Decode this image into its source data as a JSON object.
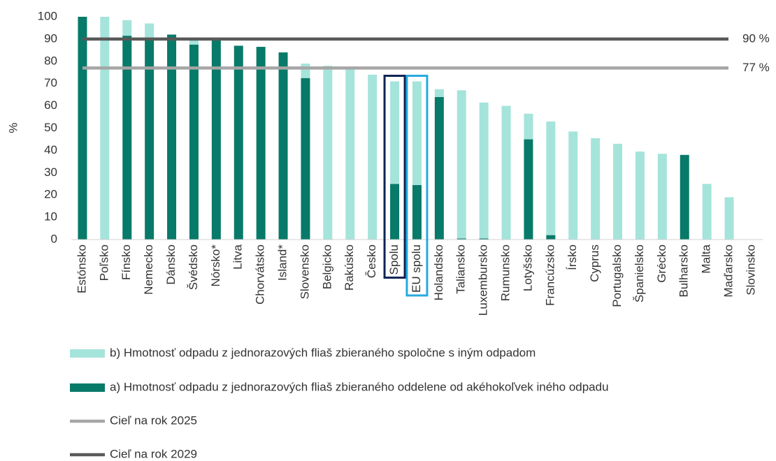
{
  "chart_data": {
    "type": "stacked_bar",
    "ylabel": "%",
    "categories": [
      "Estónsko",
      "Poľsko",
      "Fínsko",
      "Nemecko",
      "Dánsko",
      "Švédsko",
      "Nórsko*",
      "Litva",
      "Chorvátsko",
      "Island*",
      "Slovensko",
      "Belgicko",
      "Rakúsko",
      "Česko",
      "Spolu",
      "EU spolu",
      "Holandsko",
      "Taliansko",
      "Luxembursko",
      "Rumunsko",
      "Lotyšsko",
      "Francúzsko",
      "Írsko",
      "Cyprus",
      "Portugalsko",
      "Španielsko",
      "Grécko",
      "Bulharsko",
      "Malta",
      "Maďarsko",
      "Slovinsko"
    ],
    "series": [
      {
        "name": "a) Hmotnosť odpadu z jednorazových fliaš zbieraného oddelene od akéhokoľvek iného odpadu",
        "color": "#087a69",
        "values": [
          100,
          0,
          91.5,
          90,
          92,
          87.5,
          90,
          87,
          86.5,
          84,
          72.5,
          0,
          0,
          0,
          25,
          24.5,
          64,
          0.5,
          0.5,
          0,
          45,
          2,
          0,
          0,
          0,
          0,
          0,
          38,
          0,
          0,
          0
        ]
      },
      {
        "name": "b) Hmotnosť odpadu z jednorazových fliaš zbieraného spoločne s iným odpadom",
        "color": "#a5e4da",
        "values": [
          0,
          100,
          7,
          7,
          0,
          2.5,
          0,
          0,
          0,
          0,
          6.5,
          78,
          76.5,
          74,
          46,
          46.5,
          3.5,
          66.5,
          61,
          60,
          11.5,
          51,
          48.5,
          45.5,
          43,
          39.5,
          38.5,
          0,
          25,
          19,
          0
        ]
      }
    ],
    "targets": [
      {
        "name": "Cieľ na rok 2025",
        "value": 77,
        "label": "77 %",
        "color": "#a6a6a6"
      },
      {
        "name": "Cieľ na rok 2029",
        "value": 90,
        "label": "90 %",
        "color": "#595959"
      }
    ],
    "highlights": [
      {
        "category": "Spolu",
        "color": "#0e2553"
      },
      {
        "category": "EU spolu",
        "color": "#27a9e1"
      }
    ],
    "ylim": [
      0,
      100
    ],
    "yticks": [
      0,
      10,
      20,
      30,
      40,
      50,
      60,
      70,
      80,
      90,
      100
    ],
    "grid": false
  }
}
